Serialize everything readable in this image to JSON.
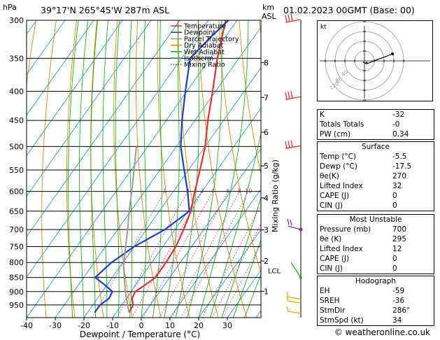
{
  "header": {
    "location": "39°17'N 265°45'W 287m ASL",
    "datetime": "01.02.2023 00GMT (Base: 00)",
    "hpa_unit": "hPa",
    "km_unit": "km",
    "asl_unit": "ASL"
  },
  "footer": {
    "copyright": "© weatheronline.co.uk"
  },
  "legend": {
    "items": [
      {
        "label": "Temperature",
        "color": "#e83030",
        "style": "solid"
      },
      {
        "label": "Dewpoint",
        "color": "#1a3fcf",
        "style": "solid"
      },
      {
        "label": "Parcel Trajectory",
        "color": "#9a9a9a",
        "style": "solid"
      },
      {
        "label": "Dry Adiabat",
        "color": "#e08a00",
        "style": "solid"
      },
      {
        "label": "Wet Adiabat",
        "color": "#19b419",
        "style": "solid"
      },
      {
        "label": "Isotherm",
        "color": "#1aa0e0",
        "style": "solid"
      },
      {
        "label": "Mixing Ratio",
        "color": "#d0209a",
        "style": "dotted"
      }
    ]
  },
  "chart_data": {
    "type": "line",
    "xlabel": "Dewpoint / Temperature (°C)",
    "ylabel_right": "Mixing Ratio (g/kg)",
    "xlim": [
      -40,
      38
    ],
    "ylim_hpa": [
      300,
      1000
    ],
    "x_ticks": [
      "-40",
      "-30",
      "-20",
      "-10",
      "0",
      "10",
      "20",
      "30"
    ],
    "x_tick_values": [
      -40,
      -30,
      -20,
      -10,
      0,
      10,
      20,
      30
    ],
    "pressure_levels": [
      300,
      350,
      400,
      450,
      500,
      550,
      600,
      650,
      700,
      750,
      800,
      850,
      900,
      950
    ],
    "pressure_labels": [
      "300",
      "350",
      "400",
      "450",
      "500",
      "550",
      "600",
      "650",
      "700",
      "750",
      "800",
      "850",
      "900",
      "950"
    ],
    "km_levels": [
      {
        "label": "8",
        "hpa": 356
      },
      {
        "label": "7",
        "hpa": 410
      },
      {
        "label": "6",
        "hpa": 472
      },
      {
        "label": "5",
        "hpa": 541
      },
      {
        "label": "4",
        "hpa": 616
      },
      {
        "label": "3",
        "hpa": 701
      },
      {
        "label": "2",
        "hpa": 795
      },
      {
        "label": "1",
        "hpa": 899
      }
    ],
    "lcl": {
      "label": "LCL",
      "hpa": 810
    },
    "mixing_ratio_labels": [
      {
        "label": "1",
        "value": 1,
        "x": -7
      },
      {
        "label": "2",
        "value": 2,
        "x": 2
      },
      {
        "label": "3",
        "value": 3,
        "x": 7
      },
      {
        "label": "4",
        "value": 4,
        "x": 11
      },
      {
        "label": "6",
        "value": 6,
        "x": 17
      },
      {
        "label": "8",
        "value": 8,
        "x": 22
      },
      {
        "label": "10",
        "value": 10,
        "x": 25
      },
      {
        "label": "16",
        "value": 16,
        "x": 31
      },
      {
        "label": "20",
        "value": 20,
        "x": 34
      },
      {
        "label": "25",
        "value": 25,
        "x": 37
      }
    ],
    "series": [
      {
        "name": "Temperature",
        "points": [
          {
            "p": 980,
            "t": -5.5
          },
          {
            "p": 950,
            "t": -6
          },
          {
            "p": 925,
            "t": -8
          },
          {
            "p": 900,
            "t": -8.5
          },
          {
            "p": 880,
            "t": -7
          },
          {
            "p": 850,
            "t": -5
          },
          {
            "p": 800,
            "t": -5
          },
          {
            "p": 750,
            "t": -5.5
          },
          {
            "p": 700,
            "t": -7
          },
          {
            "p": 650,
            "t": -9
          },
          {
            "p": 600,
            "t": -12.5
          },
          {
            "p": 550,
            "t": -16
          },
          {
            "p": 500,
            "t": -20
          },
          {
            "p": 450,
            "t": -25.5
          },
          {
            "p": 400,
            "t": -31
          },
          {
            "p": 350,
            "t": -37.5
          },
          {
            "p": 300,
            "t": -44
          }
        ]
      },
      {
        "name": "Dewpoint",
        "points": [
          {
            "p": 980,
            "t": -17.5
          },
          {
            "p": 950,
            "t": -17.5
          },
          {
            "p": 925,
            "t": -16
          },
          {
            "p": 900,
            "t": -16.5
          },
          {
            "p": 875,
            "t": -21
          },
          {
            "p": 850,
            "t": -26
          },
          {
            "p": 800,
            "t": -24
          },
          {
            "p": 750,
            "t": -20
          },
          {
            "p": 700,
            "t": -13.5
          },
          {
            "p": 650,
            "t": -9.5
          },
          {
            "p": 600,
            "t": -15
          },
          {
            "p": 550,
            "t": -21.5
          },
          {
            "p": 500,
            "t": -28.5
          },
          {
            "p": 450,
            "t": -34.5
          },
          {
            "p": 400,
            "t": -40.5
          },
          {
            "p": 350,
            "t": -47
          },
          {
            "p": 320,
            "t": -45
          },
          {
            "p": 300,
            "t": -43
          }
        ]
      },
      {
        "name": "Parcel Trajectory",
        "points": [
          {
            "p": 980,
            "t": -5.5
          },
          {
            "p": 900,
            "t": -12
          },
          {
            "p": 810,
            "t": -19
          },
          {
            "p": 750,
            "t": -23
          },
          {
            "p": 700,
            "t": -26.5
          },
          {
            "p": 650,
            "t": -30.5
          },
          {
            "p": 600,
            "t": -34.5
          },
          {
            "p": 550,
            "t": -39
          },
          {
            "p": 500,
            "t": -44
          }
        ]
      }
    ]
  },
  "hodograph": {
    "unit_label": "kt",
    "ring_labels": [
      "40",
      "80",
      "120"
    ]
  },
  "panel_top": {
    "rows": [
      {
        "label": "K",
        "value": "-32"
      },
      {
        "label": "Totals Totals",
        "value": "-0"
      },
      {
        "label": "PW (cm)",
        "value": "0.34"
      }
    ]
  },
  "panel_surface": {
    "title": "Surface",
    "rows": [
      {
        "label": "Temp (°C)",
        "value": "-5.5"
      },
      {
        "label": "Dewp (°C)",
        "value": "-17.5"
      },
      {
        "label": "θe(K)",
        "value": "270"
      },
      {
        "label": "Lifted Index",
        "value": "32"
      },
      {
        "label": "CAPE (J)",
        "value": "0"
      },
      {
        "label": "CIN (J)",
        "value": "0"
      }
    ]
  },
  "panel_unstable": {
    "title": "Most Unstable",
    "rows": [
      {
        "label": "Pressure (mb)",
        "value": "700"
      },
      {
        "label": "θe (K)",
        "value": "295"
      },
      {
        "label": "Lifted Index",
        "value": "12"
      },
      {
        "label": "CAPE (J)",
        "value": "0"
      },
      {
        "label": "CIN (J)",
        "value": "0"
      }
    ]
  },
  "panel_hodograph": {
    "title": "Hodograph",
    "rows": [
      {
        "label": "EH",
        "value": "-59"
      },
      {
        "label": "SREH",
        "value": "-36"
      },
      {
        "label": "StmDir",
        "value": "286°"
      },
      {
        "label": "StmSpd (kt)",
        "value": "34"
      }
    ]
  }
}
